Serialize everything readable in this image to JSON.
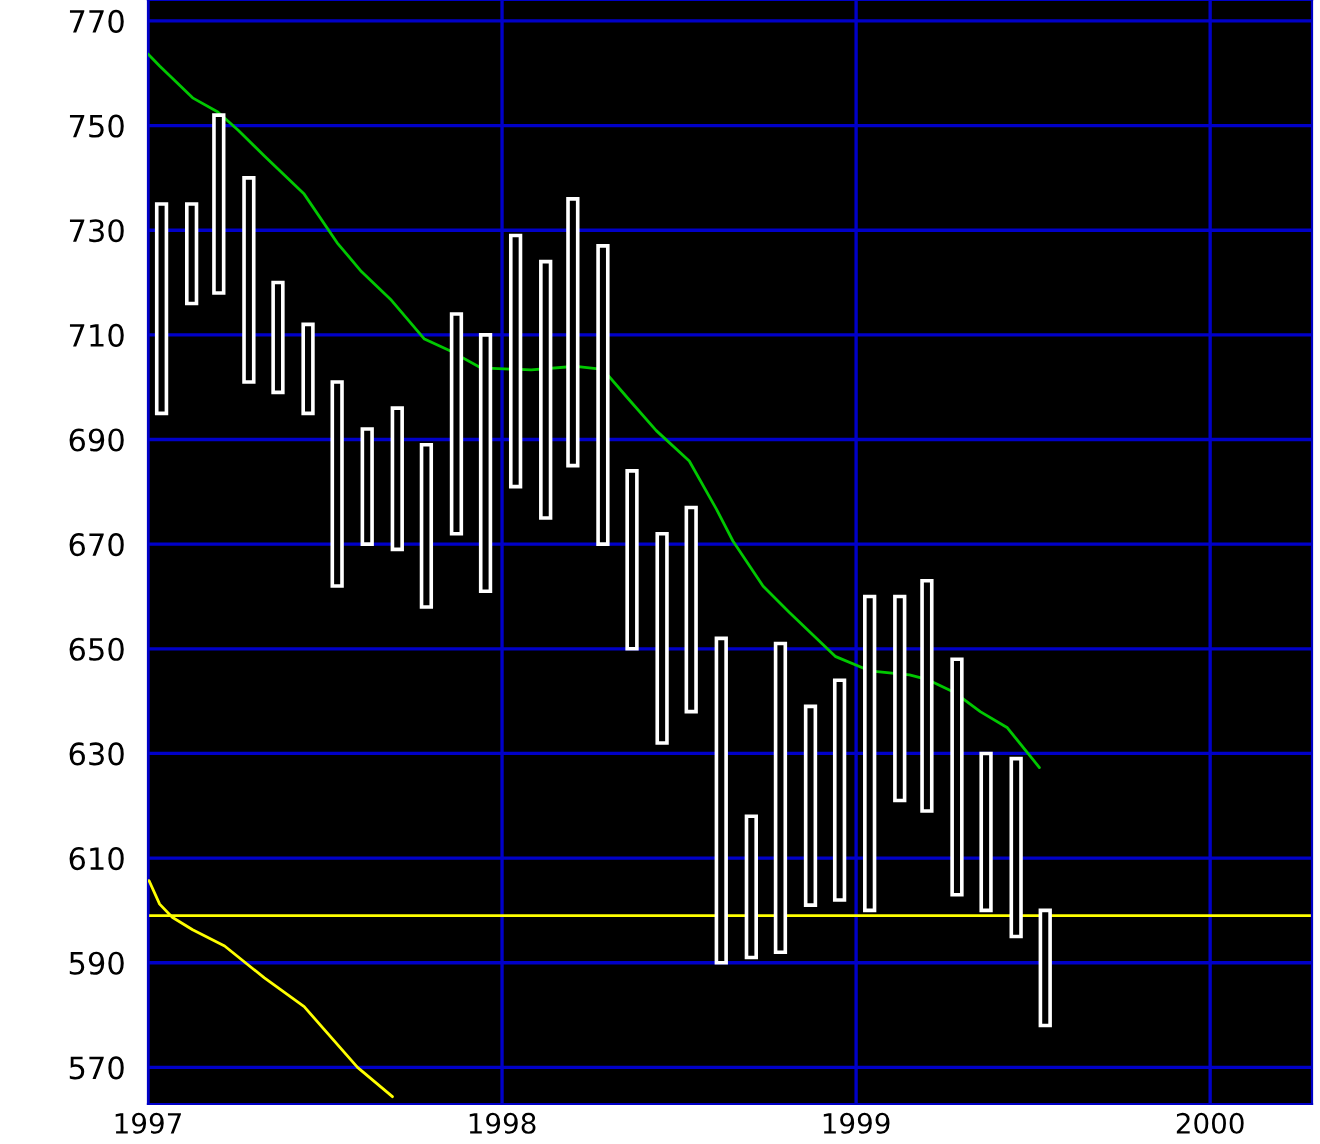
{
  "chart_data": {
    "type": "bar",
    "series": [
      {
        "color": "#ffffff",
        "x": [
          "1997-01-15",
          "1997-02-15",
          "1997-03-15",
          "1997-04-15",
          "1997-05-15",
          "1997-06-15",
          "1997-07-15",
          "1997-08-15",
          "1997-09-15",
          "1997-10-15",
          "1997-11-15",
          "1997-12-15",
          "1998-01-15",
          "1998-02-15",
          "1998-03-15",
          "1998-04-15",
          "1998-05-15",
          "1998-06-15",
          "1998-07-15",
          "1998-08-15",
          "1998-09-15",
          "1998-10-15",
          "1998-11-15",
          "1998-12-15",
          "1999-01-15",
          "1999-02-15",
          "1999-03-15",
          "1999-04-15",
          "1999-05-15",
          "1999-06-15",
          "1999-07-15"
        ],
        "base": [
          695,
          716,
          718,
          701,
          699,
          695,
          662,
          670,
          669,
          658,
          672,
          661,
          681,
          675,
          685,
          670,
          650,
          632,
          638,
          590,
          591,
          592,
          601,
          602,
          600,
          621,
          619,
          603,
          600,
          595,
          578
        ],
        "values": [
          40,
          19,
          34,
          39,
          21,
          17,
          39,
          22,
          27,
          31,
          42,
          49,
          48,
          49,
          51,
          57,
          34,
          40,
          39,
          62,
          27,
          59,
          38,
          42,
          60,
          39,
          44,
          45,
          30,
          34,
          22
        ]
      },
      {
        "type": "line",
        "color": "#00c800",
        "x": [
          "1997-01-01",
          "1997-01-13",
          "1997-02-16",
          "1997-03-14",
          "1997-04-04",
          "1997-05-01",
          "1997-06-11",
          "1997-07-15",
          "1997-08-09",
          "1997-09-09",
          "1997-10-13",
          "1997-11-10",
          "1997-12-10",
          "1998-01-31",
          "1998-03-18",
          "1998-04-15",
          "1998-05-12",
          "1998-06-09",
          "1998-07-13",
          "1998-08-10",
          "1998-08-27",
          "1998-09-27",
          "1998-10-24",
          "1998-12-11",
          "1999-01-15",
          "1999-02-25",
          "1999-03-16",
          "1999-04-12",
          "1999-05-09",
          "1999-06-06",
          "1999-07-09"
        ],
        "values": [
          763.7,
          761.4,
          755.3,
          752.6,
          749.1,
          744.2,
          736.9,
          727.6,
          722.1,
          716.6,
          709.2,
          706.8,
          703.7,
          703.3,
          704,
          703.4,
          697.6,
          691.7,
          685.9,
          676.7,
          670.6,
          662,
          657,
          648.5,
          645.8,
          645,
          644.1,
          641.7,
          638,
          634.9,
          627.3
        ]
      },
      {
        "type": "line",
        "color": "#ffff00",
        "x": [
          "1997-01-02",
          "1997-01-13",
          "1997-01-26",
          "1997-02-16",
          "1997-03-21",
          "1997-05-01",
          "1997-06-11",
          "1997-08-05",
          "1997-09-10"
        ],
        "values": [
          605.7,
          601.2,
          598.7,
          596.3,
          593.2,
          587.1,
          581.6,
          570,
          564.4
        ]
      }
    ],
    "ref_lines": [
      {
        "axis": "y",
        "value": 599,
        "color": "#ffff00"
      }
    ],
    "xlim": [
      "1997-01-01",
      "2000-04-15"
    ],
    "xticks": [
      {
        "value": "1997-01-01",
        "label": "1997"
      },
      {
        "value": "1998-01-01",
        "label": "1998"
      },
      {
        "value": "1999-01-01",
        "label": "1999"
      },
      {
        "value": "2000-01-01",
        "label": "2000"
      }
    ],
    "ylim": [
      563,
      774
    ],
    "yticks": [
      570,
      590,
      610,
      630,
      650,
      670,
      690,
      710,
      730,
      750,
      770
    ],
    "grid": true,
    "legend": false
  }
}
